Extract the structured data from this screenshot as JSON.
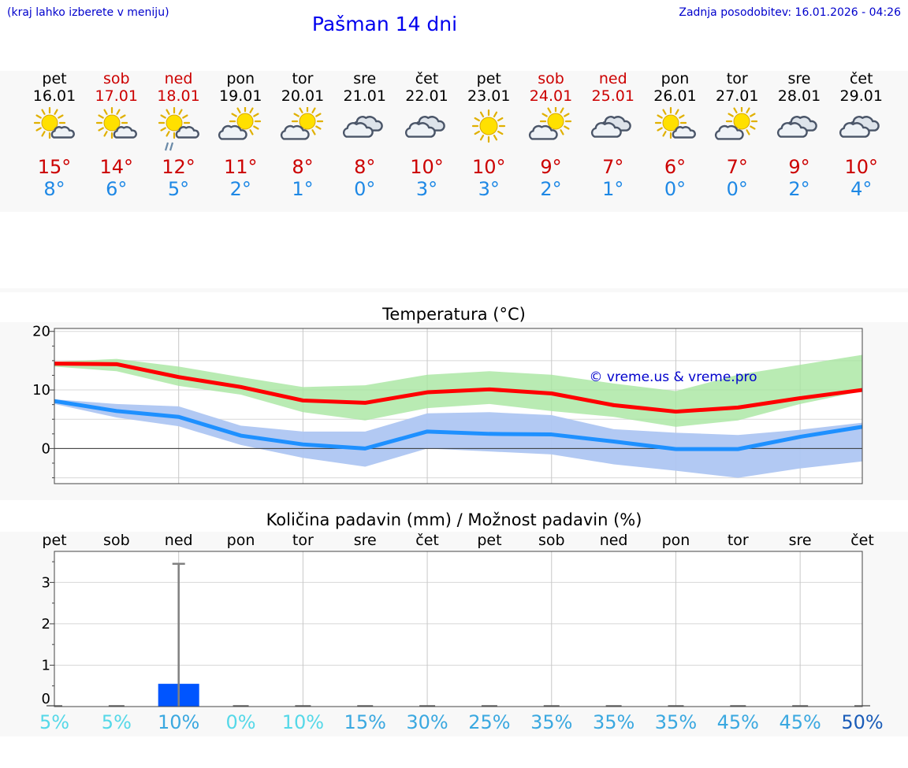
{
  "header": {
    "left_note": "(kraj lahko izberete v meniju)",
    "title": "Pašman 14 dni",
    "updated": "Zadnja posodobitev: 16.01.2026 - 04:26"
  },
  "days": [
    {
      "name": "pet",
      "date": "16.01",
      "weekend": false,
      "icon": "sun-cloud",
      "max": "15°",
      "min": "8°"
    },
    {
      "name": "sob",
      "date": "17.01",
      "weekend": true,
      "icon": "sun-cloud",
      "max": "14°",
      "min": "6°"
    },
    {
      "name": "ned",
      "date": "18.01",
      "weekend": true,
      "icon": "sun-cloud-rain",
      "max": "12°",
      "min": "5°"
    },
    {
      "name": "pon",
      "date": "19.01",
      "weekend": false,
      "icon": "cloud-sun",
      "max": "11°",
      "min": "2°"
    },
    {
      "name": "tor",
      "date": "20.01",
      "weekend": false,
      "icon": "cloud-sun",
      "max": "8°",
      "min": "1°"
    },
    {
      "name": "sre",
      "date": "21.01",
      "weekend": false,
      "icon": "cloudy",
      "max": "8°",
      "min": "0°"
    },
    {
      "name": "čet",
      "date": "22.01",
      "weekend": false,
      "icon": "cloudy",
      "max": "10°",
      "min": "3°"
    },
    {
      "name": "pet",
      "date": "23.01",
      "weekend": false,
      "icon": "sun",
      "max": "10°",
      "min": "3°"
    },
    {
      "name": "sob",
      "date": "24.01",
      "weekend": true,
      "icon": "cloud-sun",
      "max": "9°",
      "min": "2°"
    },
    {
      "name": "ned",
      "date": "25.01",
      "weekend": true,
      "icon": "cloudy",
      "max": "7°",
      "min": "1°"
    },
    {
      "name": "pon",
      "date": "26.01",
      "weekend": false,
      "icon": "sun-cloud",
      "max": "6°",
      "min": "0°"
    },
    {
      "name": "tor",
      "date": "27.01",
      "weekend": false,
      "icon": "cloud-sun",
      "max": "7°",
      "min": "0°"
    },
    {
      "name": "sre",
      "date": "28.01",
      "weekend": false,
      "icon": "cloudy",
      "max": "9°",
      "min": "2°"
    },
    {
      "name": "čet",
      "date": "29.01",
      "weekend": false,
      "icon": "cloudy",
      "max": "10°",
      "min": "4°"
    }
  ],
  "colors": {
    "max_line": "#ff0000",
    "min_line": "#1e90ff",
    "max_band": "#a8e6a0",
    "min_band": "#aec6f2",
    "bar": "#0055ff",
    "whisker": "#808080",
    "text_max": "#cc0000",
    "text_min": "#1e88e5"
  },
  "chart_data": [
    {
      "type": "line",
      "title": "Temperatura (°C)",
      "watermark": "© vreme.us & vreme.pro",
      "ylim": [
        -6,
        20.5
      ],
      "yticks": [
        0,
        10,
        20
      ],
      "x": [
        0,
        1,
        2,
        3,
        4,
        5,
        6,
        7,
        8,
        9,
        10,
        11,
        12,
        13
      ],
      "series": [
        {
          "name": "max",
          "values": [
            14.5,
            14.4,
            12.2,
            10.5,
            8.2,
            7.8,
            9.6,
            10.1,
            9.4,
            7.4,
            6.3,
            7.0,
            8.6,
            10.0
          ]
        },
        {
          "name": "min",
          "values": [
            8.1,
            6.4,
            5.4,
            2.2,
            0.7,
            0.0,
            2.9,
            2.5,
            2.4,
            1.2,
            -0.1,
            -0.1,
            2.0,
            3.7
          ]
        }
      ],
      "bands": [
        {
          "name": "max_range",
          "lower": [
            14.0,
            13.2,
            10.7,
            9.2,
            6.2,
            4.8,
            6.9,
            7.6,
            6.4,
            5.4,
            3.7,
            4.8,
            7.6,
            9.8
          ],
          "upper": [
            14.8,
            15.3,
            14.0,
            12.2,
            10.5,
            10.8,
            12.6,
            13.2,
            12.6,
            11.1,
            9.8,
            12.6,
            14.3,
            16.0
          ]
        },
        {
          "name": "min_range",
          "lower": [
            7.6,
            5.3,
            3.8,
            0.6,
            -1.6,
            -3.1,
            0.0,
            -0.5,
            -1.0,
            -2.7,
            -3.8,
            -5.0,
            -3.4,
            -2.2
          ],
          "upper": [
            8.4,
            7.6,
            7.2,
            3.9,
            2.9,
            2.9,
            6.0,
            6.2,
            5.7,
            3.3,
            2.7,
            2.3,
            3.2,
            4.4
          ]
        }
      ]
    },
    {
      "type": "bar",
      "title": "Količina padavin (mm) / Možnost padavin (%)",
      "ylim": [
        0,
        3.75
      ],
      "yticks": [
        0,
        1,
        2,
        3
      ],
      "categories": [
        "pet",
        "sob",
        "ned",
        "pon",
        "tor",
        "sre",
        "čet",
        "pet",
        "sob",
        "ned",
        "pon",
        "tor",
        "sre",
        "čet"
      ],
      "values": [
        0,
        0,
        0.55,
        0,
        0,
        0,
        0,
        0,
        0,
        0,
        0,
        0,
        0,
        0
      ],
      "max_values": [
        0,
        0,
        3.45,
        0,
        0,
        0,
        0,
        0,
        0,
        0,
        0,
        0,
        0,
        0
      ],
      "probability": [
        "5%",
        "5%",
        "10%",
        "0%",
        "10%",
        "15%",
        "30%",
        "25%",
        "35%",
        "35%",
        "35%",
        "45%",
        "45%",
        "50%"
      ],
      "probability_colors": [
        "#55d8e8",
        "#55d8e8",
        "#3aa8e0",
        "#55d8e8",
        "#55d8e8",
        "#3aa8e0",
        "#3aa8e0",
        "#3aa8e0",
        "#3aa8e0",
        "#3aa8e0",
        "#3aa8e0",
        "#3aa8e0",
        "#3aa8e0",
        "#1a5cb8"
      ]
    }
  ]
}
